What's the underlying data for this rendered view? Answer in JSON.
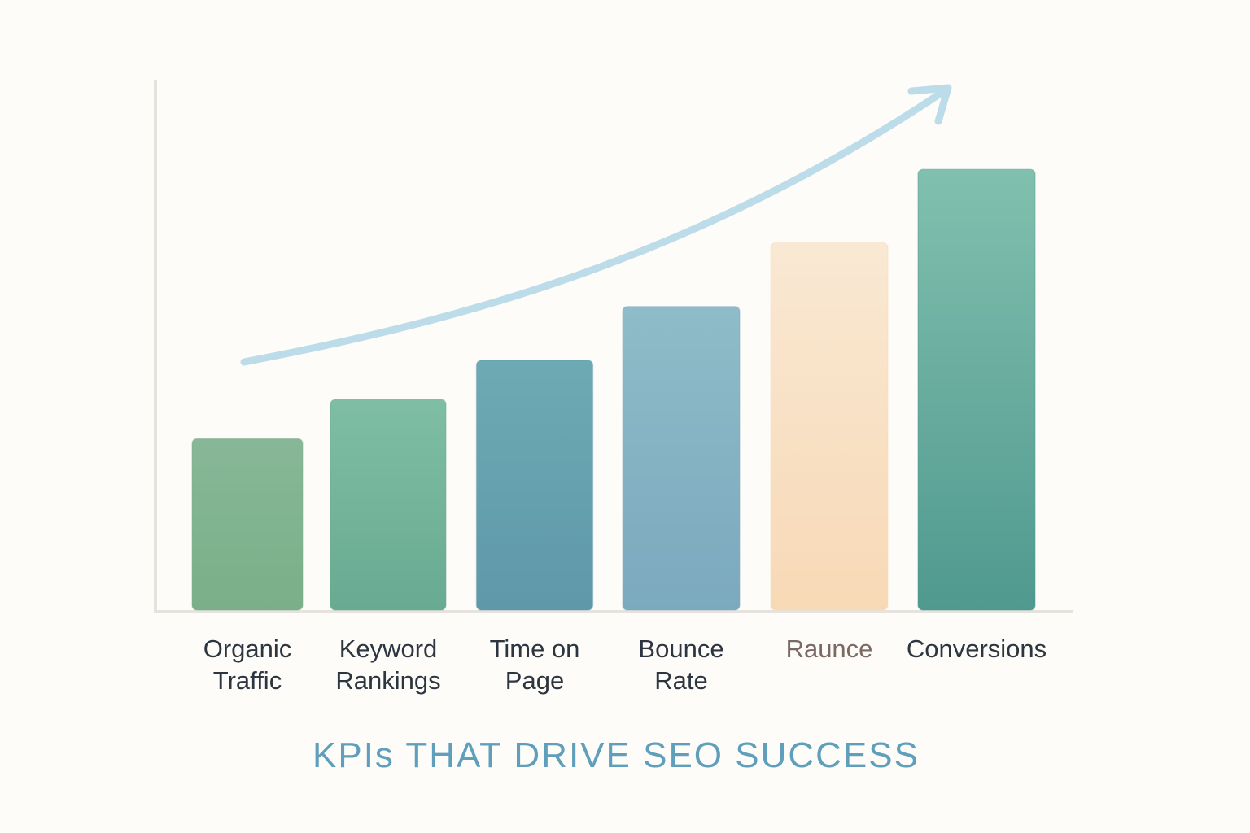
{
  "chart_data": {
    "type": "bar",
    "title": "KPIs THAT DRIVE SEO SUCCESS",
    "categories": [
      "Organic\nTraffic",
      "Keyword\nRankings",
      "Time on\nPage",
      "Bounce\nRate",
      "Raunce",
      "Conversions"
    ],
    "values": [
      35,
      43,
      51,
      62,
      75,
      90
    ],
    "ylim": [
      0,
      103
    ],
    "xlabel": "",
    "ylabel": "",
    "grid": false,
    "legend": "none",
    "annotation": "upward trend arrow",
    "colors": {
      "bars_top": [
        "#87b797",
        "#7fbea4",
        "#6daab3",
        "#8fbcc8",
        "#f9e8d3",
        "#81c0ae"
      ],
      "bars_bottom": [
        "#7aaf89",
        "#68aa92",
        "#5f98aa",
        "#7ba9be",
        "#f8d9b6",
        "#50998f"
      ],
      "axis": "#e6e2dd",
      "arrow": "#bcdce9",
      "title": "#5f9fbb",
      "label": "#2d3640",
      "label_muted": "#7a6a63"
    }
  }
}
